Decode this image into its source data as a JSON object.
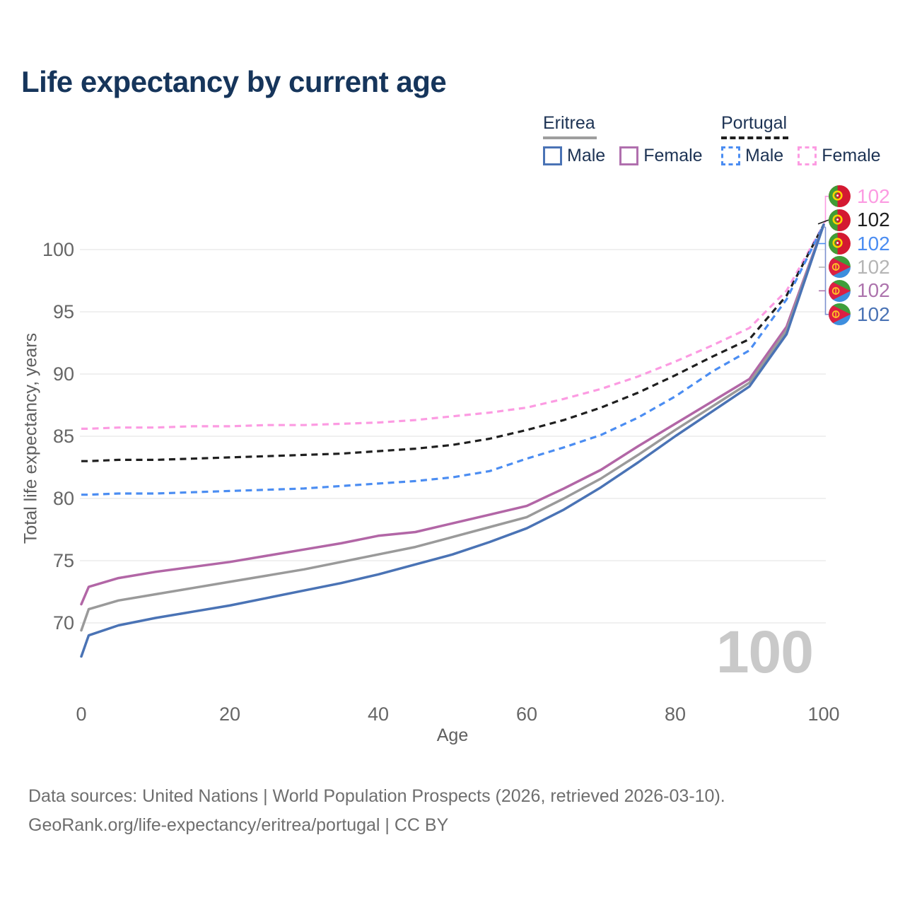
{
  "title": "Life expectancy by current age",
  "legend": {
    "groups": [
      {
        "country": "Eritrea",
        "line_style": "solid",
        "underline_color": "#9e9e9e",
        "items": [
          {
            "label": "Male",
            "color": "#4a73b5"
          },
          {
            "label": "Female",
            "color": "#b06fae"
          }
        ]
      },
      {
        "country": "Portugal",
        "line_style": "dashed",
        "underline_color": "#1f1f1f",
        "items": [
          {
            "label": "Male",
            "color": "#4b8df2"
          },
          {
            "label": "Female",
            "color": "#fc9be2"
          }
        ]
      }
    ]
  },
  "y_axis": {
    "title": "Total life expectancy, years",
    "ticks": [
      100,
      95,
      90,
      85,
      80,
      75,
      70
    ]
  },
  "x_axis": {
    "title": "Age",
    "ticks": [
      0,
      20,
      40,
      60,
      80,
      100
    ]
  },
  "age_indicator": "100",
  "end_labels": [
    {
      "flag": "portugal",
      "series": "Portugal Female",
      "value": "102",
      "color": "#fc9be2"
    },
    {
      "flag": "portugal",
      "series": "Portugal Both sexes",
      "value": "102",
      "color": "#1f1f1f"
    },
    {
      "flag": "portugal",
      "series": "Portugal Male",
      "value": "102",
      "color": "#4b8df2"
    },
    {
      "flag": "eritrea",
      "series": "Eritrea Both sexes",
      "value": "102",
      "color": "#b5b5b5"
    },
    {
      "flag": "eritrea",
      "series": "Eritrea Female",
      "value": "102",
      "color": "#ad74ad"
    },
    {
      "flag": "eritrea",
      "series": "Eritrea Male",
      "value": "102",
      "color": "#4a73b5"
    }
  ],
  "footer": {
    "line1": "Data sources: United Nations | World Population Prospects (2026, retrieved 2026-03-10).",
    "line2": "GeoRank.org/life-expectancy/eritrea/portugal | CC BY"
  },
  "flag_colors": {
    "portugal": {
      "green": "#3f9e35",
      "red": "#d41931",
      "emblem_yellow": "#ffd200"
    },
    "eritrea": {
      "green": "#3f9e3b",
      "blue": "#3d8ede",
      "red": "#dc1f42",
      "emblem_yellow": "#ffc726"
    }
  },
  "chart_data": {
    "type": "line",
    "title": "Life expectancy by current age",
    "xlabel": "Age",
    "ylabel": "Total life expectancy, years",
    "xlim": [
      0,
      100
    ],
    "ylim": [
      66.5,
      103
    ],
    "grid": "horizontal",
    "gridline_color": "#ececec",
    "legend_position": "top-right",
    "x": [
      0,
      1,
      5,
      10,
      15,
      20,
      25,
      30,
      35,
      40,
      45,
      50,
      55,
      60,
      65,
      70,
      75,
      80,
      85,
      90,
      95,
      100
    ],
    "series": [
      {
        "name": "Portugal Female",
        "country": "Portugal",
        "sex": "female",
        "style": "dashed",
        "color": "#fc9be2",
        "values": [
          85.6,
          85.6,
          85.7,
          85.7,
          85.8,
          85.8,
          85.9,
          85.9,
          86.0,
          86.1,
          86.3,
          86.6,
          86.9,
          87.3,
          88.0,
          88.8,
          89.8,
          91.0,
          92.3,
          93.7,
          96.7,
          102
        ]
      },
      {
        "name": "Portugal Both sexes",
        "country": "Portugal",
        "sex": "both",
        "style": "dashed",
        "color": "#1f1f1f",
        "values": [
          83.0,
          83.0,
          83.1,
          83.1,
          83.2,
          83.3,
          83.4,
          83.5,
          83.6,
          83.8,
          84.0,
          84.3,
          84.8,
          85.5,
          86.3,
          87.3,
          88.5,
          89.9,
          91.4,
          92.8,
          96.3,
          102
        ]
      },
      {
        "name": "Portugal Male",
        "country": "Portugal",
        "sex": "male",
        "style": "dashed",
        "color": "#4b8df2",
        "values": [
          80.3,
          80.3,
          80.4,
          80.4,
          80.5,
          80.6,
          80.7,
          80.8,
          81.0,
          81.2,
          81.4,
          81.7,
          82.2,
          83.2,
          84.1,
          85.1,
          86.5,
          88.2,
          90.2,
          91.9,
          96.0,
          102
        ]
      },
      {
        "name": "Eritrea Female",
        "country": "Eritrea",
        "sex": "female",
        "style": "solid",
        "color": "#b266a6",
        "values": [
          71.5,
          72.9,
          73.6,
          74.1,
          74.5,
          74.9,
          75.4,
          75.9,
          76.4,
          77.0,
          77.3,
          78.0,
          78.7,
          79.4,
          80.8,
          82.3,
          84.2,
          86.0,
          87.8,
          89.6,
          93.8,
          102
        ]
      },
      {
        "name": "Eritrea Both sexes",
        "country": "Eritrea",
        "sex": "both",
        "style": "solid",
        "color": "#9a9a9a",
        "values": [
          69.4,
          71.1,
          71.8,
          72.3,
          72.8,
          73.3,
          73.8,
          74.3,
          74.9,
          75.5,
          76.1,
          76.9,
          77.7,
          78.5,
          80.0,
          81.6,
          83.5,
          85.5,
          87.4,
          89.3,
          93.5,
          102
        ]
      },
      {
        "name": "Eritrea Male",
        "country": "Eritrea",
        "sex": "male",
        "style": "solid",
        "color": "#4a73b5",
        "values": [
          67.3,
          69.0,
          69.8,
          70.4,
          70.9,
          71.4,
          72.0,
          72.6,
          73.2,
          73.9,
          74.7,
          75.5,
          76.5,
          77.6,
          79.1,
          80.9,
          82.9,
          85.0,
          87.0,
          89.0,
          93.2,
          102
        ]
      }
    ],
    "end_value_at_age_100": 102
  }
}
